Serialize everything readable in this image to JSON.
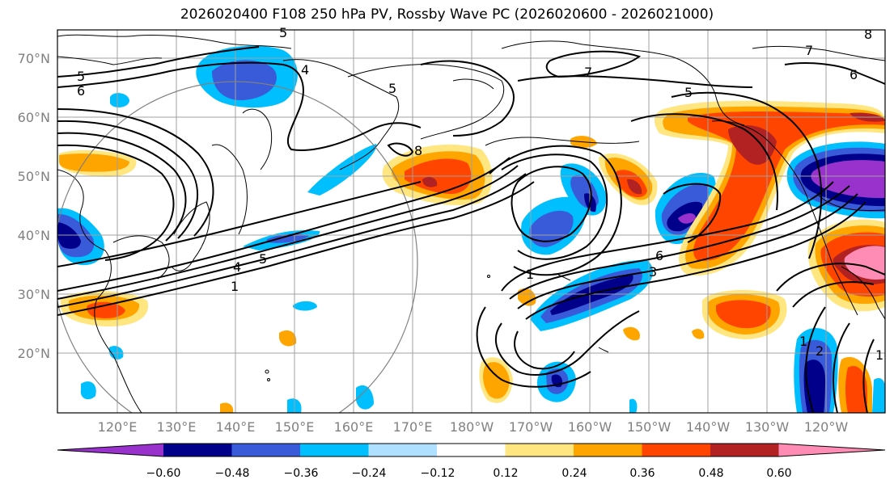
{
  "title": "2026020400 F108 250 hPa PV, Rossby Wave PC (2026020600 - 2026021000)",
  "lat_labels": [
    "70°N",
    "60°N",
    "50°N",
    "40°N",
    "30°N",
    "20°N"
  ],
  "lon_labels": [
    "120°E",
    "130°E",
    "140°E",
    "150°E",
    "160°E",
    "170°E",
    "180°W",
    "170°W",
    "160°W",
    "150°W",
    "140°W",
    "130°W",
    "120°W"
  ],
  "colorbar": {
    "ticks": [
      "−0.60",
      "−0.48",
      "−0.36",
      "−0.24",
      "−0.12",
      "0.12",
      "0.24",
      "0.36",
      "0.48",
      "0.60"
    ],
    "colors": [
      "#9932cc",
      "#00008b",
      "#3a5bd9",
      "#00bfff",
      "#b0e0ff",
      "#ffffff",
      "#ffe680",
      "#ffa500",
      "#ff4500",
      "#b22222",
      "#ff8cb4"
    ]
  },
  "contour_labels": [
    "5",
    "6",
    "4",
    "5",
    "5",
    "7",
    "6",
    "5",
    "7",
    "8",
    "8",
    "1",
    "1",
    "5",
    "4",
    "6",
    "3",
    "1",
    "2",
    "1"
  ],
  "colors": {
    "purple": "#9932cc",
    "navy": "#00008b",
    "blue": "#3a5bd9",
    "sky": "#00bfff",
    "pale_blue": "#b0e0ff",
    "yellow": "#ffe680",
    "orange": "#ffa500",
    "red_orange": "#ff4500",
    "dark_red": "#b22222",
    "pink": "#ff8cb4"
  }
}
